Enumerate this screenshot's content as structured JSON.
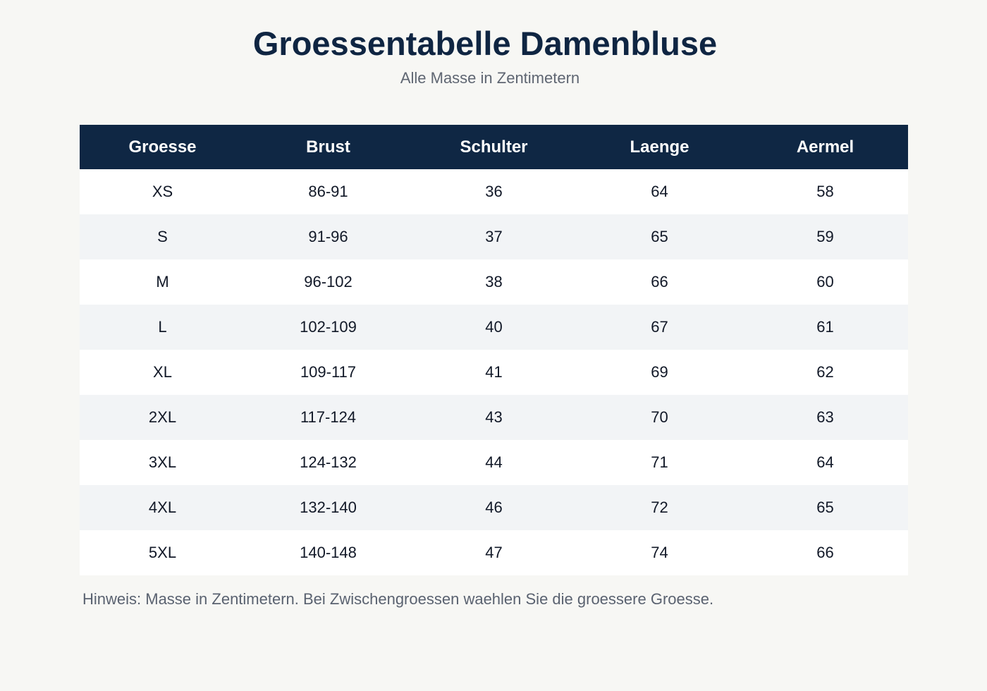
{
  "chart_data": {
    "type": "table",
    "title": "Groessentabelle Damenbluse",
    "subtitle": "Alle Masse in Zentimetern",
    "columns": [
      "Groesse",
      "Brust",
      "Schulter",
      "Laenge",
      "Aermel"
    ],
    "rows": [
      [
        "XS",
        "86-91",
        "36",
        "64",
        "58"
      ],
      [
        "S",
        "91-96",
        "37",
        "65",
        "59"
      ],
      [
        "M",
        "96-102",
        "38",
        "66",
        "60"
      ],
      [
        "L",
        "102-109",
        "40",
        "67",
        "61"
      ],
      [
        "XL",
        "109-117",
        "41",
        "69",
        "62"
      ],
      [
        "2XL",
        "117-124",
        "43",
        "70",
        "63"
      ],
      [
        "3XL",
        "124-132",
        "44",
        "71",
        "64"
      ],
      [
        "4XL",
        "132-140",
        "46",
        "72",
        "65"
      ],
      [
        "5XL",
        "140-148",
        "47",
        "74",
        "66"
      ]
    ],
    "note": "Hinweis: Masse in Zentimetern. Bei Zwischengroessen waehlen Sie die groessere Groesse."
  },
  "colors": {
    "background": "#f7f7f4",
    "header_background": "#0f2744",
    "header_text": "#ffffff",
    "row_alt": "#f2f4f6",
    "title": "#0f2542"
  }
}
